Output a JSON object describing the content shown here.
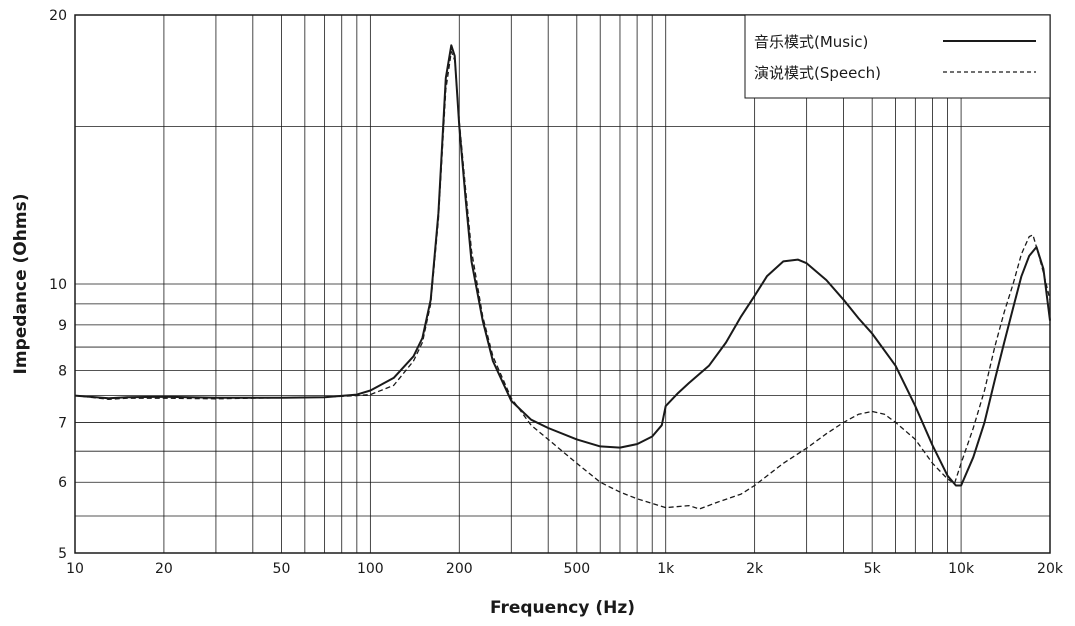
{
  "chart_data": {
    "type": "line",
    "xscale": "log",
    "yscale": "log",
    "xlabel": "Frequency (Hz)",
    "ylabel": "Impedance (Ohms)",
    "xlim": [
      10,
      20000
    ],
    "ylim": [
      5,
      20
    ],
    "grid": true,
    "legend_position": "top-right",
    "x_ticks": [
      {
        "value": 10,
        "label": "10"
      },
      {
        "value": 20,
        "label": "20"
      },
      {
        "value": 50,
        "label": "50"
      },
      {
        "value": 100,
        "label": "100"
      },
      {
        "value": 200,
        "label": "200"
      },
      {
        "value": 500,
        "label": "500"
      },
      {
        "value": 1000,
        "label": "1k"
      },
      {
        "value": 2000,
        "label": "2k"
      },
      {
        "value": 5000,
        "label": "5k"
      },
      {
        "value": 10000,
        "label": "10k"
      },
      {
        "value": 20000,
        "label": "20k"
      }
    ],
    "y_ticks": [
      {
        "value": 5,
        "label": "5"
      },
      {
        "value": 6,
        "label": "6"
      },
      {
        "value": 7,
        "label": "7"
      },
      {
        "value": 8,
        "label": "8"
      },
      {
        "value": 9,
        "label": "9"
      },
      {
        "value": 10,
        "label": "10"
      },
      {
        "value": 20,
        "label": "20"
      }
    ],
    "series": [
      {
        "name": "音乐模式(Music)",
        "style": "solid",
        "color": "#1a1a1a",
        "points": [
          [
            10,
            7.5
          ],
          [
            13,
            7.45
          ],
          [
            15,
            7.47
          ],
          [
            20,
            7.48
          ],
          [
            30,
            7.46
          ],
          [
            50,
            7.46
          ],
          [
            70,
            7.47
          ],
          [
            90,
            7.52
          ],
          [
            100,
            7.6
          ],
          [
            120,
            7.85
          ],
          [
            140,
            8.3
          ],
          [
            150,
            8.7
          ],
          [
            160,
            9.6
          ],
          [
            170,
            12.0
          ],
          [
            180,
            17.0
          ],
          [
            188,
            18.5
          ],
          [
            193,
            18.0
          ],
          [
            200,
            15.0
          ],
          [
            210,
            12.5
          ],
          [
            220,
            10.6
          ],
          [
            240,
            9.1
          ],
          [
            260,
            8.2
          ],
          [
            300,
            7.4
          ],
          [
            350,
            7.05
          ],
          [
            400,
            6.9
          ],
          [
            500,
            6.7
          ],
          [
            600,
            6.58
          ],
          [
            700,
            6.56
          ],
          [
            800,
            6.62
          ],
          [
            900,
            6.75
          ],
          [
            970,
            6.95
          ],
          [
            1000,
            7.3
          ],
          [
            1100,
            7.55
          ],
          [
            1200,
            7.75
          ],
          [
            1400,
            8.1
          ],
          [
            1600,
            8.6
          ],
          [
            1800,
            9.2
          ],
          [
            2000,
            9.7
          ],
          [
            2200,
            10.2
          ],
          [
            2500,
            10.6
          ],
          [
            2800,
            10.65
          ],
          [
            3000,
            10.55
          ],
          [
            3500,
            10.1
          ],
          [
            4000,
            9.6
          ],
          [
            4500,
            9.15
          ],
          [
            5000,
            8.8
          ],
          [
            6000,
            8.1
          ],
          [
            7000,
            7.3
          ],
          [
            8000,
            6.6
          ],
          [
            9000,
            6.1
          ],
          [
            9600,
            5.95
          ],
          [
            10000,
            5.95
          ],
          [
            11000,
            6.4
          ],
          [
            12000,
            7.0
          ],
          [
            13000,
            7.8
          ],
          [
            14000,
            8.6
          ],
          [
            15000,
            9.4
          ],
          [
            16000,
            10.2
          ],
          [
            17000,
            10.75
          ],
          [
            18000,
            11.0
          ],
          [
            19000,
            10.4
          ],
          [
            20000,
            9.1
          ]
        ]
      },
      {
        "name": "演说模式(Speech)",
        "style": "dashed",
        "color": "#1a1a1a",
        "points": [
          [
            10,
            7.5
          ],
          [
            13,
            7.43
          ],
          [
            15,
            7.45
          ],
          [
            20,
            7.45
          ],
          [
            30,
            7.44
          ],
          [
            50,
            7.46
          ],
          [
            70,
            7.47
          ],
          [
            90,
            7.5
          ],
          [
            100,
            7.52
          ],
          [
            120,
            7.7
          ],
          [
            140,
            8.2
          ],
          [
            150,
            8.6
          ],
          [
            160,
            9.5
          ],
          [
            170,
            11.8
          ],
          [
            180,
            16.5
          ],
          [
            188,
            18.2
          ],
          [
            193,
            17.8
          ],
          [
            200,
            15.2
          ],
          [
            210,
            12.8
          ],
          [
            220,
            10.9
          ],
          [
            240,
            9.2
          ],
          [
            260,
            8.3
          ],
          [
            300,
            7.45
          ],
          [
            350,
            6.95
          ],
          [
            400,
            6.7
          ],
          [
            500,
            6.3
          ],
          [
            600,
            6.0
          ],
          [
            700,
            5.85
          ],
          [
            800,
            5.75
          ],
          [
            1000,
            5.62
          ],
          [
            1200,
            5.65
          ],
          [
            1300,
            5.6
          ],
          [
            1500,
            5.7
          ],
          [
            1800,
            5.82
          ],
          [
            2000,
            5.95
          ],
          [
            2500,
            6.3
          ],
          [
            3000,
            6.55
          ],
          [
            3500,
            6.8
          ],
          [
            4000,
            7.0
          ],
          [
            4500,
            7.15
          ],
          [
            5000,
            7.2
          ],
          [
            5500,
            7.15
          ],
          [
            6000,
            7.0
          ],
          [
            7000,
            6.7
          ],
          [
            8000,
            6.3
          ],
          [
            9000,
            6.05
          ],
          [
            9500,
            5.98
          ],
          [
            10000,
            6.3
          ],
          [
            11000,
            6.9
          ],
          [
            12000,
            7.6
          ],
          [
            13000,
            8.5
          ],
          [
            14000,
            9.3
          ],
          [
            15000,
            10.0
          ],
          [
            16000,
            10.8
          ],
          [
            17000,
            11.3
          ],
          [
            17500,
            11.35
          ],
          [
            18000,
            11.0
          ],
          [
            19000,
            10.3
          ],
          [
            20000,
            9.6
          ]
        ]
      }
    ]
  }
}
